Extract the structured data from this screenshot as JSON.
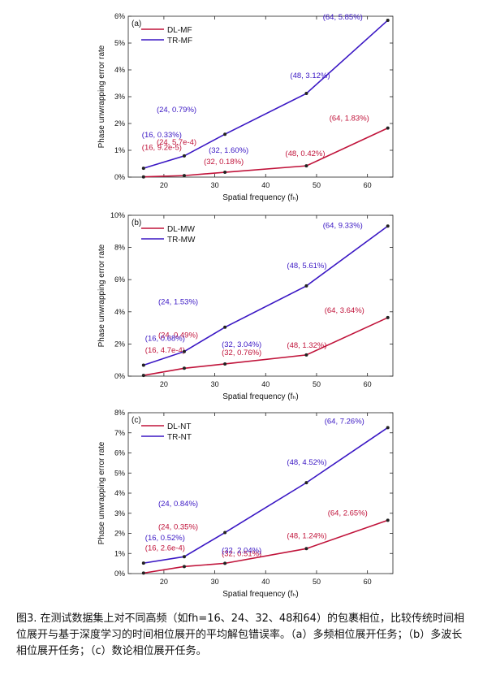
{
  "chart_data": [
    {
      "type": "line",
      "panel_label": "(a)",
      "x": [
        16,
        24,
        32,
        48,
        64
      ],
      "xlabel": "Spatial frequency (fₕ)",
      "ylabel": "Phase unwrapping error rate",
      "xlim": [
        13,
        65
      ],
      "ylim": [
        0,
        6
      ],
      "y_unit": "%",
      "xticks": [
        "20",
        "30",
        "40",
        "50",
        "60"
      ],
      "yticks": [
        "0%",
        "1%",
        "2%",
        "3%",
        "4%",
        "5%",
        "6%"
      ],
      "legend_position": "top-left",
      "series": [
        {
          "name": "DL-MF",
          "color": "#c0133a",
          "values": [
            0.0092,
            0.057,
            0.18,
            0.42,
            1.83
          ],
          "labels": [
            "(16, 9.2e-5)",
            "(24, 5.7e-4)",
            "(32, 0.18%)",
            "(48, 0.42%)",
            "(64, 1.83%)"
          ]
        },
        {
          "name": "TR-MF",
          "color": "#3a17c4",
          "values": [
            0.33,
            0.79,
            1.6,
            3.12,
            5.85
          ],
          "labels": [
            "(16, 0.33%)",
            "(24, 0.79%)",
            "(32, 1.60%)",
            "(48, 3.12%)",
            "(64, 5.85%)"
          ]
        }
      ]
    },
    {
      "type": "line",
      "panel_label": "(b)",
      "x": [
        16,
        24,
        32,
        48,
        64
      ],
      "xlabel": "Spatial frequency (fₕ)",
      "ylabel": "Phase unwrapping error rate",
      "xlim": [
        13,
        65
      ],
      "ylim": [
        0,
        10
      ],
      "y_unit": "%",
      "xticks": [
        "20",
        "30",
        "40",
        "50",
        "60"
      ],
      "yticks": [
        "0%",
        "2%",
        "4%",
        "6%",
        "8%",
        "10%"
      ],
      "legend_position": "top-left",
      "series": [
        {
          "name": "DL-MW",
          "color": "#c0133a",
          "values": [
            0.047,
            0.49,
            0.76,
            1.32,
            3.64
          ],
          "labels": [
            "(16, 4.7e-4)",
            "(24, 0.49%)",
            "(32, 0.76%)",
            "(48, 1.32%)",
            "(64, 3.64%)"
          ]
        },
        {
          "name": "TR-MW",
          "color": "#3a17c4",
          "values": [
            0.68,
            1.53,
            3.04,
            5.61,
            9.33
          ],
          "labels": [
            "(16, 0.68%)",
            "(24, 1.53%)",
            "(32, 3.04%)",
            "(48, 5.61%)",
            "(64, 9.33%)"
          ]
        }
      ]
    },
    {
      "type": "line",
      "panel_label": "(c)",
      "x": [
        16,
        24,
        32,
        48,
        64
      ],
      "xlabel": "Spatial frequency (fₕ)",
      "ylabel": "Phase unwrapping error rate",
      "xlim": [
        13,
        65
      ],
      "ylim": [
        0,
        8
      ],
      "y_unit": "%",
      "xticks": [
        "20",
        "30",
        "40",
        "50",
        "60"
      ],
      "yticks": [
        "0%",
        "1%",
        "2%",
        "3%",
        "4%",
        "5%",
        "6%",
        "7%",
        "8%"
      ],
      "legend_position": "top-left",
      "series": [
        {
          "name": "DL-NT",
          "color": "#c0133a",
          "values": [
            0.026,
            0.35,
            0.51,
            1.24,
            2.65
          ],
          "labels": [
            "(16, 2.6e-4)",
            "(24, 0.35%)",
            "(32, 0.51%)",
            "(48, 1.24%)",
            "(64, 2.65%)"
          ]
        },
        {
          "name": "TR-NT",
          "color": "#3a17c4",
          "values": [
            0.52,
            0.84,
            2.04,
            4.52,
            7.26
          ],
          "labels": [
            "(16, 0.52%)",
            "(24, 0.84%)",
            "(32, 2.04%)",
            "(48, 4.52%)",
            "(64, 7.26%)"
          ]
        }
      ]
    }
  ],
  "caption": "图3. 在测试数据集上对不同高频（如fh=16、24、32、48和64）的包裹相位，比较传统时间相位展开与基于深度学习的时间相位展开的平均解包错误率。（a）多频相位展开任务；（b）多波长相位展开任务；（c）数论相位展开任务。"
}
